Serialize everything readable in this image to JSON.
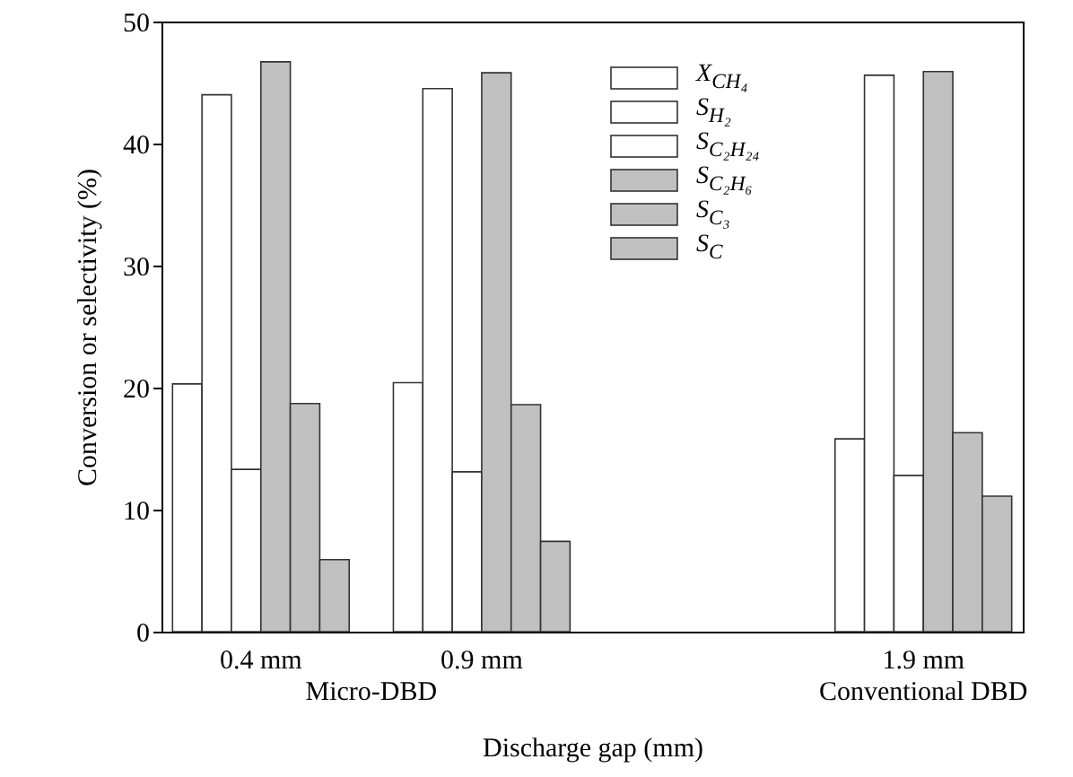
{
  "chart_data": {
    "type": "bar",
    "xlabel": "Discharge gap (mm)",
    "ylabel": "Conversion or selectivity (%)",
    "categories": [
      "0.4 mm",
      "0.9 mm",
      null,
      "1.9 mm"
    ],
    "series": [
      {
        "name": "X$_{CH₄}$",
        "color": "#ffffff",
        "values": [
          20.3,
          20.4,
          null,
          15.8
        ]
      },
      {
        "name": "S$_{H₂}$",
        "color": "#ffffff",
        "values": [
          44.0,
          44.5,
          null,
          45.6
        ]
      },
      {
        "name": "S$_{C₂H₂₄}$",
        "color": "#ffffff",
        "values": [
          13.3,
          13.1,
          null,
          12.8
        ]
      },
      {
        "name": "S$_{C₂H₆}$",
        "color": "#c0c0c0",
        "values": [
          46.7,
          45.8,
          null,
          45.9
        ]
      },
      {
        "name": "S$_{C₃}$",
        "color": "#c0c0c0",
        "values": [
          18.7,
          18.6,
          null,
          16.3
        ]
      },
      {
        "name": "S$_{C}$",
        "color": "#c0c0c0",
        "values": [
          5.9,
          7.4,
          null,
          11.1
        ]
      }
    ],
    "annotations": [
      "Micro-DBD",
      "Conventional DBD"
    ],
    "ylim": [
      0,
      50
    ],
    "yticks": [
      0,
      10,
      20,
      30,
      40,
      50
    ],
    "grid": false,
    "legend": "top right"
  }
}
